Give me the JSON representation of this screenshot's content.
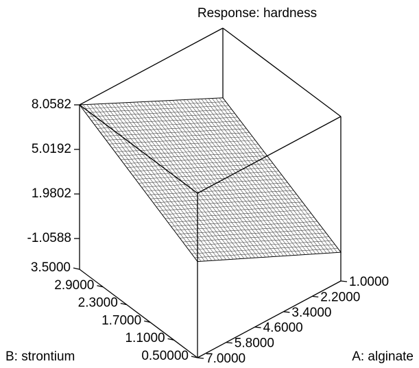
{
  "chart_data": {
    "type": "surface3d",
    "title": "Response: hardness",
    "xlabel": "A: alginate",
    "ylabel": "B: strontium",
    "x": [
      1.0,
      7.0
    ],
    "y": [
      0.5,
      3.5
    ],
    "z": [
      [
        -1.2,
        3.4
      ],
      [
        3.3,
        8.0582
      ]
    ],
    "xlim": [
      1.0,
      7.0
    ],
    "ylim": [
      0.5,
      3.5
    ],
    "zlim": [
      -3.16,
      8.0582
    ],
    "xticks": [
      {
        "value": 1.0,
        "label": "1.0000"
      },
      {
        "value": 2.2,
        "label": "2.2000"
      },
      {
        "value": 3.4,
        "label": "3.4000"
      },
      {
        "value": 4.6,
        "label": "4.6000"
      },
      {
        "value": 5.8,
        "label": "5.8000"
      },
      {
        "value": 7.0,
        "label": "7.0000"
      }
    ],
    "yticks": [
      {
        "value": 0.5,
        "label": "0.50000"
      },
      {
        "value": 1.1,
        "label": "1.1000"
      },
      {
        "value": 1.7,
        "label": "1.7000"
      },
      {
        "value": 2.3,
        "label": "2.3000"
      },
      {
        "value": 2.9,
        "label": "2.9000"
      },
      {
        "value": 3.5,
        "label": "3.5000"
      }
    ],
    "zticks": [
      -1.0588,
      1.9802,
      5.0192,
      8.0582
    ],
    "color": "#444444"
  }
}
